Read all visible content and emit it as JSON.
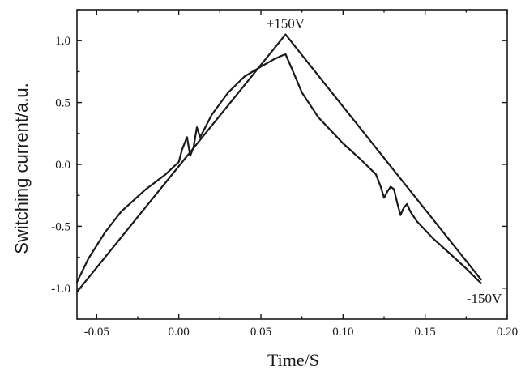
{
  "chart_data": {
    "type": "line",
    "xlabel": "Time/S",
    "ylabel": "Switching current/a.u.",
    "xlim": [
      -0.062,
      0.2
    ],
    "ylim": [
      -1.25,
      1.25
    ],
    "x_ticks": [
      -0.05,
      0.0,
      0.05,
      0.1,
      0.15,
      0.2
    ],
    "x_tick_labels": [
      "-0.05",
      "0.00",
      "0.05",
      "0.10",
      "0.15",
      "0.20"
    ],
    "y_ticks": [
      1.0,
      0.5,
      0.0,
      -0.5,
      -1.0
    ],
    "y_tick_labels": [
      "1.0",
      "0.5",
      "0.0",
      "-0.5",
      "-1.0"
    ],
    "grid": false,
    "annotations": [
      {
        "text": "+150V",
        "x": 0.065,
        "y": 1.05
      },
      {
        "text": "-150V",
        "x": 0.184,
        "y": -0.95
      }
    ],
    "series": [
      {
        "x": [
          -0.062,
          0.065,
          0.184
        ],
        "y": [
          -1.03,
          1.05,
          -0.93
        ]
      },
      {
        "x": [
          -0.062,
          -0.055,
          -0.045,
          -0.035,
          -0.02,
          -0.008,
          0.0,
          0.002,
          0.005,
          0.007,
          0.009,
          0.011,
          0.013,
          0.015,
          0.02,
          0.03,
          0.04,
          0.05,
          0.058,
          0.063,
          0.065,
          0.068,
          0.075,
          0.085,
          0.1,
          0.11,
          0.12,
          0.123,
          0.125,
          0.127,
          0.129,
          0.131,
          0.133,
          0.135,
          0.137,
          0.139,
          0.141,
          0.145,
          0.155,
          0.165,
          0.175,
          0.184
        ],
        "y": [
          -0.95,
          -0.76,
          -0.55,
          -0.38,
          -0.2,
          -0.08,
          0.02,
          0.12,
          0.22,
          0.07,
          0.14,
          0.3,
          0.22,
          0.27,
          0.4,
          0.58,
          0.71,
          0.79,
          0.85,
          0.88,
          0.89,
          0.8,
          0.58,
          0.38,
          0.17,
          0.05,
          -0.08,
          -0.18,
          -0.27,
          -0.22,
          -0.18,
          -0.2,
          -0.31,
          -0.41,
          -0.35,
          -0.32,
          -0.38,
          -0.46,
          -0.6,
          -0.72,
          -0.84,
          -0.96
        ]
      }
    ]
  }
}
